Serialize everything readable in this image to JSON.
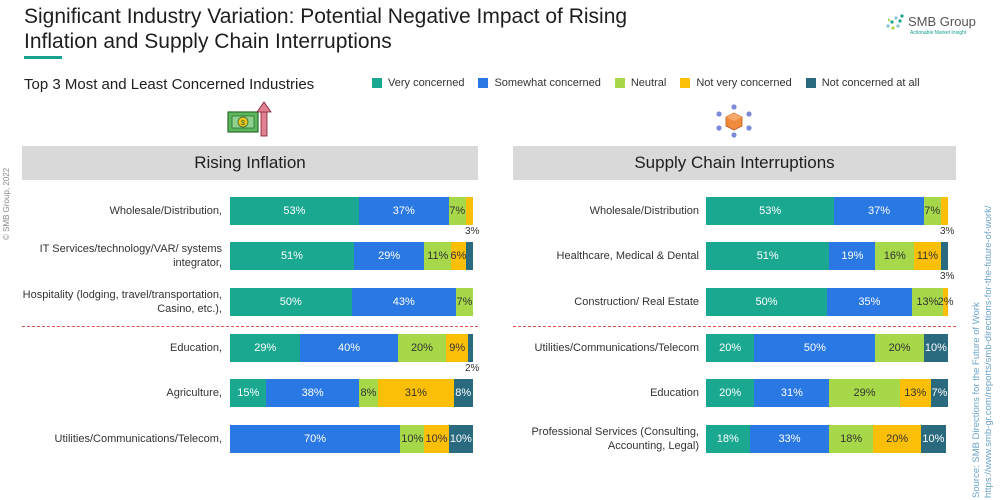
{
  "header": {
    "title_line1": "Significant Industry Variation: Potential Negative Impact of Rising",
    "title_line2": "Inflation and Supply Chain Interruptions",
    "subtitle": "Top 3 Most and Least Concerned Industries",
    "logo_text": "SMB Group",
    "logo_sub": "Actionable Market Insight",
    "copyright": "© SMB Group, 2022",
    "source_line1": "Source: SMB Directions for the Future of Work",
    "source_line2": "https://www.smb-gr.com/reports/smb-directions-for-the-future-of-work/"
  },
  "colors": {
    "very_concerned": "#1aa891",
    "somewhat_concerned": "#2a78e4",
    "neutral": "#a6d84a",
    "not_very_concerned": "#fbbf07",
    "not_at_all": "#2a6a7e",
    "accent": "#19a38f"
  },
  "legend": [
    {
      "label": "Very concerned",
      "color": "#1aa891"
    },
    {
      "label": "Somewhat concerned",
      "color": "#2a78e4"
    },
    {
      "label": "Neutral",
      "color": "#a6d84a"
    },
    {
      "label": "Not very concerned",
      "color": "#fbbf07"
    },
    {
      "label": "Not concerned at all",
      "color": "#2a6a7e"
    }
  ],
  "icons": {
    "left": "money-rising-arrow-icon",
    "right": "supply-chain-network-icon"
  },
  "chart_data": [
    {
      "type": "bar",
      "orientation": "horizontal-stacked-100",
      "title": "Rising Inflation",
      "categories": [
        "Wholesale/Distribution,",
        "IT Services/technology/VAR/ systems integrator,",
        "Hospitality (lodging, travel/transportation, Casino, etc.),",
        "Education,",
        "Agriculture,",
        "Utilities/Communications/Telecom,"
      ],
      "series": [
        {
          "name": "Very concerned",
          "values": [
            53,
            51,
            50,
            29,
            15,
            0
          ]
        },
        {
          "name": "Somewhat concerned",
          "values": [
            37,
            29,
            43,
            40,
            38,
            70
          ]
        },
        {
          "name": "Neutral",
          "values": [
            7,
            11,
            7,
            20,
            8,
            10
          ]
        },
        {
          "name": "Not very concerned",
          "values": [
            3,
            6,
            0,
            9,
            31,
            10
          ]
        },
        {
          "name": "Not concerned at all",
          "values": [
            0,
            3,
            0,
            2,
            8,
            10
          ]
        }
      ],
      "labels_below": [
        {
          "row": 0,
          "series": 3,
          "text": "3%"
        },
        {
          "row": 3,
          "series": 4,
          "text": "2%"
        }
      ],
      "hidden_labels": [
        {
          "row": 1,
          "series": 4
        }
      ],
      "group_divider_after": 2,
      "xlim": [
        0,
        100
      ]
    },
    {
      "type": "bar",
      "orientation": "horizontal-stacked-100",
      "title": "Supply Chain Interruptions",
      "categories": [
        "Wholesale/Distribution",
        "Healthcare, Medical & Dental",
        "Construction/ Real Estate",
        "Utilities/Communications/Telecom",
        "Education",
        "Professional Services (Consulting, Accounting, Legal)"
      ],
      "series": [
        {
          "name": "Very concerned",
          "values": [
            53,
            51,
            50,
            20,
            20,
            18
          ]
        },
        {
          "name": "Somewhat concerned",
          "values": [
            37,
            19,
            35,
            50,
            31,
            33
          ]
        },
        {
          "name": "Neutral",
          "values": [
            7,
            16,
            13,
            20,
            29,
            18
          ]
        },
        {
          "name": "Not very concerned",
          "values": [
            3,
            11,
            2,
            0,
            13,
            20
          ]
        },
        {
          "name": "Not concerned at all",
          "values": [
            0,
            3,
            0,
            10,
            7,
            10
          ]
        }
      ],
      "labels_below": [
        {
          "row": 0,
          "series": 3,
          "text": "3%"
        },
        {
          "row": 1,
          "series": 4,
          "text": "3%"
        }
      ],
      "hidden_labels": [],
      "group_divider_after": 2,
      "xlim": [
        0,
        100
      ]
    }
  ]
}
